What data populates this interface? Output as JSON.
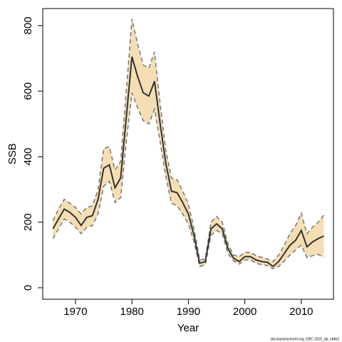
{
  "chart_data": {
    "type": "line",
    "xlabel": "Year",
    "ylabel": "SSB",
    "annotation": "stockassessment.org, EBC 2015_dp, r4463",
    "x": [
      1966,
      1967,
      1968,
      1969,
      1970,
      1971,
      1972,
      1973,
      1974,
      1975,
      1976,
      1977,
      1978,
      1979,
      1980,
      1981,
      1982,
      1983,
      1984,
      1985,
      1986,
      1987,
      1988,
      1989,
      1990,
      1991,
      1992,
      1993,
      1994,
      1995,
      1996,
      1997,
      1998,
      1999,
      2000,
      2001,
      2002,
      2003,
      2004,
      2005,
      2006,
      2007,
      2008,
      2009,
      2010,
      2011,
      2012,
      2013,
      2014
    ],
    "values": [
      180,
      210,
      240,
      230,
      215,
      190,
      215,
      220,
      270,
      365,
      375,
      305,
      335,
      520,
      705,
      645,
      595,
      585,
      630,
      500,
      380,
      295,
      290,
      260,
      225,
      160,
      75,
      80,
      180,
      195,
      180,
      120,
      90,
      80,
      95,
      95,
      85,
      80,
      78,
      65,
      80,
      105,
      130,
      145,
      175,
      125,
      140,
      150,
      158
    ],
    "upper": [
      205,
      240,
      270,
      258,
      245,
      225,
      245,
      250,
      300,
      425,
      430,
      360,
      385,
      600,
      820,
      745,
      680,
      670,
      720,
      560,
      420,
      335,
      330,
      295,
      255,
      180,
      85,
      88,
      200,
      218,
      200,
      135,
      100,
      95,
      108,
      108,
      98,
      93,
      88,
      80,
      100,
      130,
      165,
      190,
      228,
      165,
      185,
      200,
      222
    ],
    "lower": [
      150,
      180,
      210,
      200,
      185,
      165,
      185,
      190,
      225,
      310,
      325,
      260,
      275,
      445,
      595,
      550,
      510,
      500,
      545,
      445,
      340,
      258,
      250,
      225,
      195,
      140,
      65,
      70,
      160,
      175,
      165,
      105,
      82,
      72,
      85,
      85,
      75,
      70,
      68,
      58,
      65,
      82,
      100,
      115,
      130,
      92,
      98,
      102,
      92
    ],
    "color": "#333333",
    "band_color": "#f5deb3",
    "bound_color": "#777777",
    "xlim": [
      1964.2,
      2015.7
    ],
    "ylim": [
      -35,
      852
    ],
    "xticks": [
      1970,
      1980,
      1990,
      2000,
      2010
    ],
    "yticks": [
      0,
      200,
      400,
      600,
      800
    ]
  }
}
